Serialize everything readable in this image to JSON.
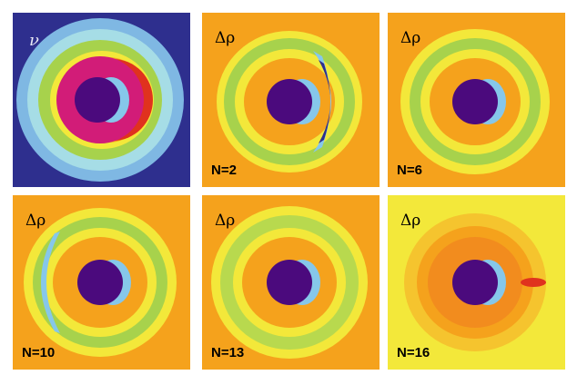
{
  "panels": [
    {
      "symbol": "ν",
      "label": "",
      "kind": "nu"
    },
    {
      "symbol": "Δρ",
      "label": "N=2",
      "kind": "n2"
    },
    {
      "symbol": "Δρ",
      "label": "N=6",
      "kind": "n6"
    },
    {
      "symbol": "Δρ",
      "label": "N=10",
      "kind": "n10"
    },
    {
      "symbol": "Δρ",
      "label": "N=13",
      "kind": "n13"
    },
    {
      "symbol": "Δρ",
      "label": "N=16",
      "kind": "n16"
    }
  ],
  "colors": {
    "border": "#1f1c6e",
    "navy": "#2e2f8e",
    "orange": "#f5a21c",
    "yellow": "#f3e83a",
    "green": "#a7d24c",
    "light_blue": "#86c7ea",
    "magenta": "#d21c78",
    "dark_purple": "#4b0a7d",
    "red": "#e0321e"
  }
}
